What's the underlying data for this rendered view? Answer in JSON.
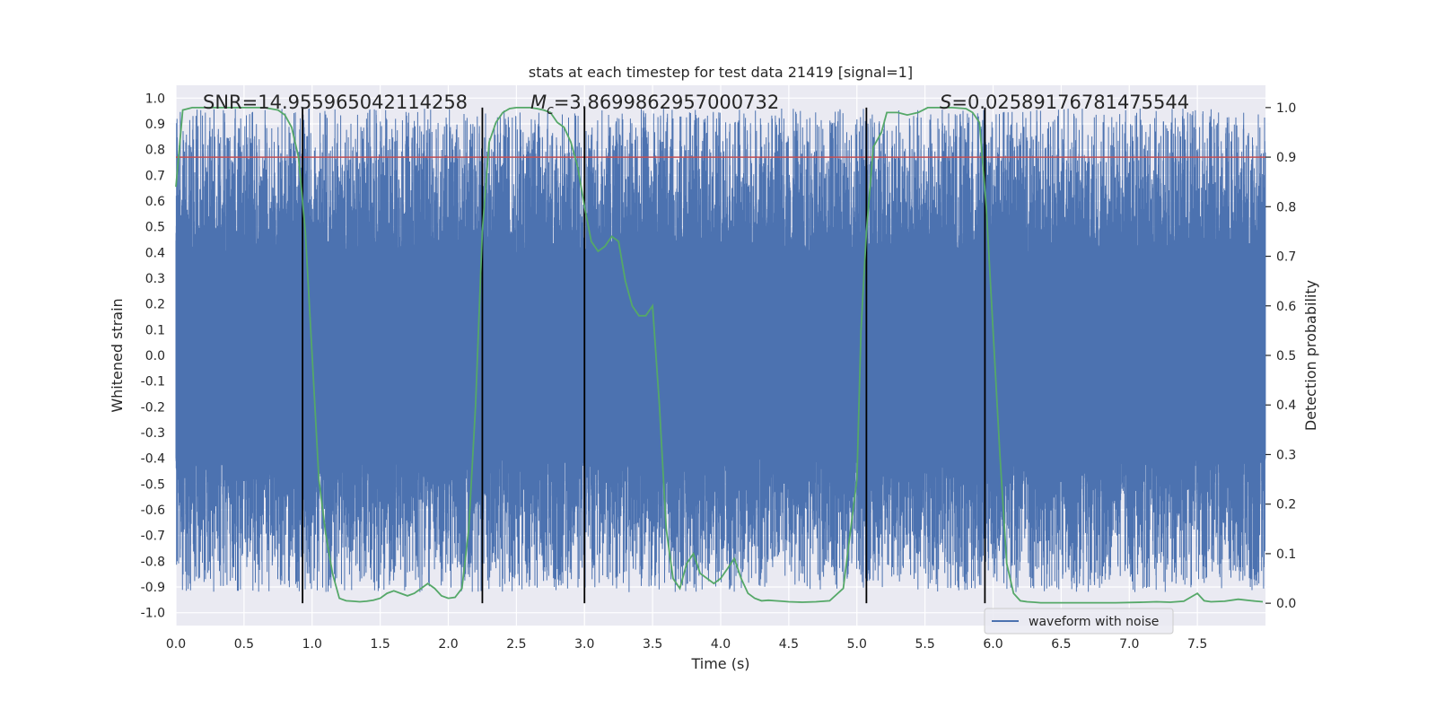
{
  "chart_data": {
    "type": "line",
    "title": "stats at each timestep for test data 21419 [signal=1]",
    "xlabel": "Time (s)",
    "ylabel": "Whitened strain",
    "y2label": "Detection probability",
    "xlim": [
      0,
      8
    ],
    "ylim": [
      -1.05,
      1.05
    ],
    "y2lim": [
      -0.045,
      1.045
    ],
    "x_ticks": [
      "0.0",
      "0.5",
      "1.0",
      "1.5",
      "2.0",
      "2.5",
      "3.0",
      "3.5",
      "4.0",
      "4.5",
      "5.0",
      "5.5",
      "6.0",
      "6.5",
      "7.0",
      "7.5"
    ],
    "y_ticks": [
      "-1.0",
      "-0.9",
      "-0.8",
      "-0.7",
      "-0.6",
      "-0.5",
      "-0.4",
      "-0.3",
      "-0.2",
      "-0.1",
      "0.0",
      "0.1",
      "0.2",
      "0.3",
      "0.4",
      "0.5",
      "0.6",
      "0.7",
      "0.8",
      "0.9",
      "1.0"
    ],
    "y2_ticks": [
      "0.0",
      "0.1",
      "0.2",
      "0.3",
      "0.4",
      "0.5",
      "0.6",
      "0.7",
      "0.8",
      "0.9",
      "1.0"
    ],
    "grid": true,
    "legend": {
      "placement": "lower-right",
      "entries": [
        "waveform with noise"
      ]
    },
    "annotations": {
      "snr": "SNR=14.955965042114258",
      "mc_symbol": "M",
      "mc_sub": "c",
      "mc_value": "=3.8699862957000732",
      "s_symbol": "S",
      "s_value": "=0.02589176781475544"
    },
    "threshold": {
      "axis": "y2",
      "value": 0.9,
      "color": "#c44e52"
    },
    "vlines_x": [
      0.93,
      2.25,
      3.0,
      5.07,
      5.94
    ],
    "series": [
      {
        "name": "waveform with noise",
        "axis": "y",
        "color": "#4c72b0",
        "envelope": {
          "band": 0.4,
          "peak": 0.96,
          "trough": -0.92,
          "samples": 8192
        }
      },
      {
        "axis": "y2",
        "color": "#55a868",
        "x": [
          0.0,
          0.05,
          0.12,
          0.25,
          0.45,
          0.65,
          0.75,
          0.8,
          0.85,
          0.9,
          0.95,
          1.0,
          1.05,
          1.1,
          1.15,
          1.2,
          1.25,
          1.3,
          1.35,
          1.4,
          1.45,
          1.5,
          1.55,
          1.6,
          1.65,
          1.7,
          1.75,
          1.8,
          1.85,
          1.9,
          1.95,
          2.0,
          2.05,
          2.1,
          2.15,
          2.2,
          2.25,
          2.3,
          2.35,
          2.4,
          2.45,
          2.5,
          2.55,
          2.6,
          2.65,
          2.7,
          2.75,
          2.8,
          2.85,
          2.9,
          2.95,
          3.0,
          3.05,
          3.1,
          3.15,
          3.2,
          3.25,
          3.3,
          3.35,
          3.4,
          3.45,
          3.5,
          3.55,
          3.6,
          3.65,
          3.7,
          3.75,
          3.8,
          3.85,
          3.9,
          3.95,
          4.0,
          4.05,
          4.1,
          4.15,
          4.2,
          4.25,
          4.3,
          4.35,
          4.4,
          4.45,
          4.5,
          4.6,
          4.7,
          4.8,
          4.9,
          5.0,
          5.03,
          5.07,
          5.12,
          5.18,
          5.22,
          5.3,
          5.37,
          5.45,
          5.52,
          5.6,
          5.7,
          5.8,
          5.85,
          5.9,
          5.95,
          6.0,
          6.05,
          6.1,
          6.15,
          6.2,
          6.25,
          6.3,
          6.35,
          6.5,
          6.7,
          6.9,
          7.1,
          7.2,
          7.3,
          7.4,
          7.5,
          7.55,
          7.6,
          7.7,
          7.8,
          7.9,
          7.98
        ],
        "values": [
          0.84,
          0.995,
          1.0,
          1.0,
          1.0,
          1.0,
          0.995,
          0.985,
          0.96,
          0.9,
          0.75,
          0.5,
          0.25,
          0.14,
          0.06,
          0.01,
          0.005,
          0.004,
          0.003,
          0.004,
          0.006,
          0.01,
          0.02,
          0.025,
          0.02,
          0.015,
          0.02,
          0.03,
          0.04,
          0.03,
          0.015,
          0.01,
          0.012,
          0.03,
          0.15,
          0.4,
          0.75,
          0.93,
          0.97,
          0.99,
          0.998,
          1.0,
          1.0,
          1.0,
          0.998,
          0.995,
          0.99,
          0.97,
          0.96,
          0.93,
          0.88,
          0.8,
          0.73,
          0.71,
          0.72,
          0.74,
          0.73,
          0.65,
          0.6,
          0.58,
          0.58,
          0.6,
          0.4,
          0.15,
          0.05,
          0.03,
          0.08,
          0.1,
          0.06,
          0.05,
          0.04,
          0.05,
          0.07,
          0.09,
          0.05,
          0.02,
          0.01,
          0.005,
          0.006,
          0.005,
          0.004,
          0.003,
          0.002,
          0.003,
          0.005,
          0.03,
          0.25,
          0.55,
          0.75,
          0.92,
          0.95,
          0.99,
          0.99,
          0.985,
          0.99,
          1.0,
          1.0,
          1.0,
          0.998,
          0.99,
          0.97,
          0.8,
          0.55,
          0.3,
          0.08,
          0.02,
          0.005,
          0.003,
          0.002,
          0.001,
          0.001,
          0.001,
          0.001,
          0.002,
          0.003,
          0.002,
          0.004,
          0.02,
          0.005,
          0.003,
          0.004,
          0.008,
          0.005,
          0.003
        ]
      }
    ]
  }
}
